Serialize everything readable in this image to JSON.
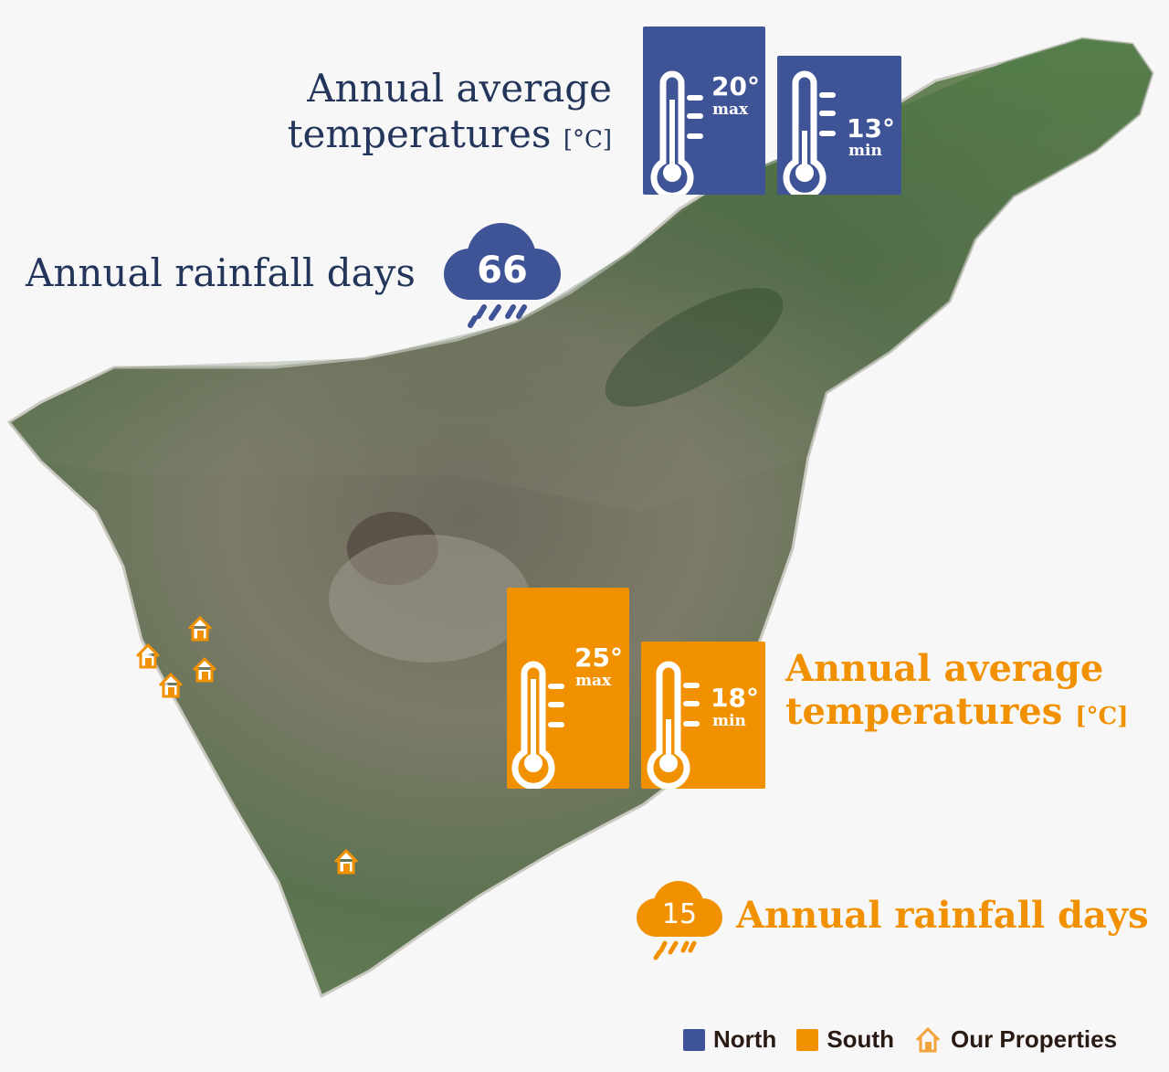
{
  "colors": {
    "north": "#3f5496",
    "south": "#f29100",
    "north_text": "#23355a"
  },
  "north": {
    "temp_heading": "Annual average",
    "temp_heading_2": "temperatures",
    "unit": "[°C]",
    "max": {
      "value": "20°",
      "label": "max",
      "fill_fraction": 0.8
    },
    "min": {
      "value": "13°",
      "label": "min",
      "fill_fraction": 0.5
    },
    "rain_heading": "Annual rainfall days",
    "rain_days": "66"
  },
  "south": {
    "temp_heading": "Annual average",
    "temp_heading_2": "temperatures",
    "unit": "[°C]",
    "max": {
      "value": "25°",
      "label": "max"
    },
    "min": {
      "value": "18°",
      "label": "min"
    },
    "rain_heading": "Annual rainfall days",
    "rain_days": "15"
  },
  "legend": {
    "items": [
      {
        "label": "North",
        "icon": "blue-square"
      },
      {
        "label": "South",
        "icon": "orange-square"
      },
      {
        "label": "Our Properties",
        "icon": "house-icon"
      }
    ]
  }
}
